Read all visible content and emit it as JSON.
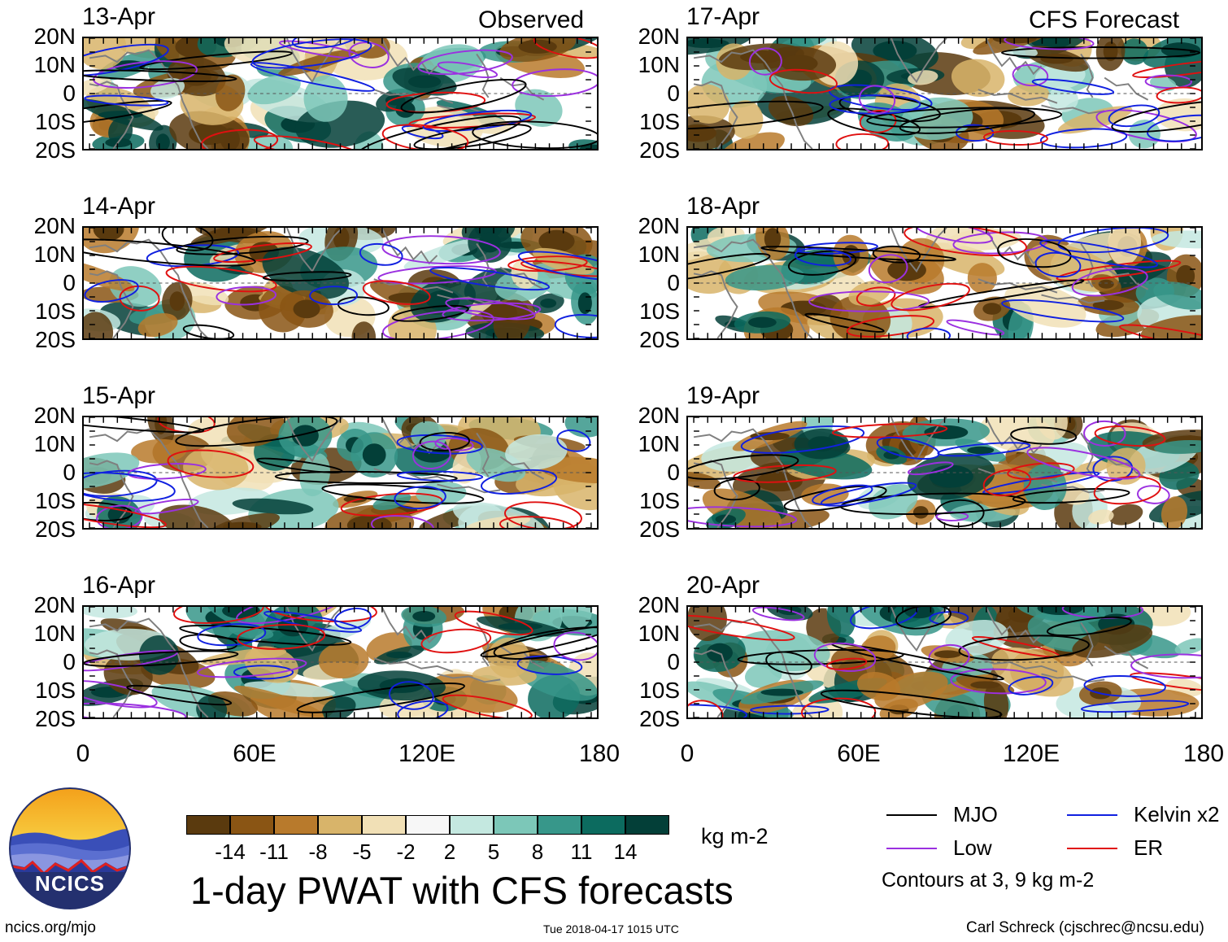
{
  "chart_data": {
    "type": "heatmap",
    "title": "1-day PWAT with CFS forecasts",
    "panel_labels": {
      "left": "Observed",
      "right": "CFS Forecast"
    },
    "panels": [
      {
        "date": "13-Apr",
        "source": "Observed"
      },
      {
        "date": "14-Apr",
        "source": "Observed"
      },
      {
        "date": "15-Apr",
        "source": "Observed"
      },
      {
        "date": "16-Apr",
        "source": "Observed"
      },
      {
        "date": "17-Apr",
        "source": "CFS Forecast"
      },
      {
        "date": "18-Apr",
        "source": "CFS Forecast"
      },
      {
        "date": "19-Apr",
        "source": "CFS Forecast"
      },
      {
        "date": "20-Apr",
        "source": "CFS Forecast"
      }
    ],
    "y_tick_labels": [
      "20N",
      "10N",
      "0",
      "10S",
      "20S"
    ],
    "ylim": [
      -20,
      20
    ],
    "x_tick_labels": [
      "0",
      "60E",
      "120E",
      "180"
    ],
    "xlim": [
      0,
      180
    ],
    "colorbar": {
      "units": "kg m-2",
      "tick_labels": [
        "-14",
        "-11",
        "-8",
        "-5",
        "-2",
        "2",
        "5",
        "8",
        "11",
        "14"
      ],
      "colors": [
        "#5a3a0e",
        "#8a5514",
        "#b87a2c",
        "#d8b46a",
        "#f1e0b6",
        "#f7f7f7",
        "#c4e8e0",
        "#7cc7b8",
        "#37978a",
        "#0c6b5f",
        "#033f38"
      ]
    },
    "legend": [
      {
        "label": "MJO",
        "color": "#000000"
      },
      {
        "label": "Kelvin x2",
        "color": "#1020e0"
      },
      {
        "label": "Low",
        "color": "#9b30e0"
      },
      {
        "label": "ER",
        "color": "#e01010"
      }
    ],
    "contour_note": "Contours at 3, 9 kg m-2"
  },
  "logo_text": "NCICS",
  "footer": {
    "left": "ncics.org/mjo",
    "center": "Tue 2018-04-17 1015 UTC",
    "right": "Carl Schreck (cjschrec@ncsu.edu)"
  },
  "palette": {
    "coast": "#7f7f7f",
    "text": "#000000"
  }
}
